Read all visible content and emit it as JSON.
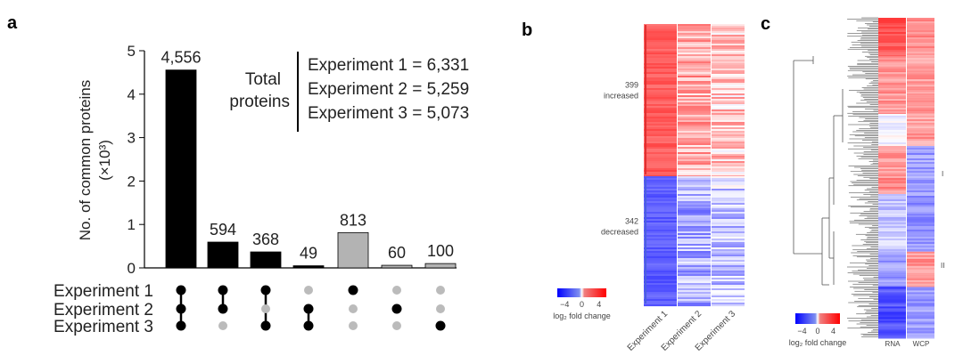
{
  "panels": {
    "a": "a",
    "b": "b",
    "c": "c"
  },
  "chart_data": [
    {
      "type": "bar",
      "panel": "a",
      "ylabel": "No. of common proteins",
      "ylabel_unit": "(×10³)",
      "ylim": [
        0,
        5
      ],
      "yticks": [
        "0",
        "1",
        "2",
        "3",
        "4",
        "5"
      ],
      "values": [
        4556,
        594,
        368,
        49,
        813,
        60,
        100
      ],
      "value_labels": [
        "4,556",
        "594",
        "368",
        "49",
        "813",
        "60",
        "100"
      ],
      "bar_colors": [
        "#000000",
        "#000000",
        "#000000",
        "#000000",
        "#b3b3b3",
        "#b3b3b3",
        "#b3b3b3"
      ],
      "sets": [
        "Experiment 1",
        "Experiment 2",
        "Experiment 3"
      ],
      "membership": [
        [
          1,
          1,
          1
        ],
        [
          1,
          1,
          0
        ],
        [
          1,
          0,
          1
        ],
        [
          0,
          1,
          1
        ],
        [
          1,
          0,
          0
        ],
        [
          0,
          1,
          0
        ],
        [
          0,
          0,
          1
        ]
      ],
      "annotation": {
        "label": [
          "Total",
          "proteins"
        ],
        "lines": [
          "Experiment 1 = 6,331",
          "Experiment 2 = 5,259",
          "Experiment 3 = 5,073"
        ]
      }
    },
    {
      "type": "heatmap",
      "panel": "b",
      "columns": [
        "Experiment 1",
        "Experiment 2",
        "Experiment 3"
      ],
      "groups": [
        {
          "count": "399",
          "label": "increased",
          "color": "#e03030",
          "mean_log2fc": [
            3.0,
            1.5,
            1.0
          ]
        },
        {
          "count": "342",
          "label": "decreased",
          "color": "#4a5fe0",
          "mean_log2fc": [
            -3.0,
            -1.5,
            -1.0
          ]
        }
      ],
      "colorbar": {
        "ticks": [
          "−4",
          "0",
          "4"
        ],
        "label": "log₂ fold change",
        "range": [
          -4,
          4
        ],
        "low": "#0000ff",
        "mid": "#ffffff",
        "high": "#ff0000"
      }
    },
    {
      "type": "heatmap",
      "panel": "c",
      "columns": [
        "RNA",
        "WCP"
      ],
      "clusters": [
        "I",
        "II"
      ],
      "dendrogram": true,
      "blocks": [
        {
          "rows": 0.12,
          "mean_log2fc": [
            3.2,
            2.0
          ]
        },
        {
          "rows": 0.18,
          "mean_log2fc": [
            2.0,
            1.8
          ]
        },
        {
          "rows": 0.1,
          "mean_log2fc": [
            -0.3,
            1.8
          ]
        },
        {
          "rows": 0.15,
          "mean_log2fc": [
            2.0,
            -1.8
          ]
        },
        {
          "rows": 0.18,
          "mean_log2fc": [
            -1.0,
            -2.0
          ]
        },
        {
          "rows": 0.11,
          "mean_log2fc": [
            -1.8,
            2.0
          ]
        },
        {
          "rows": 0.16,
          "mean_log2fc": [
            -3.2,
            -1.8
          ]
        }
      ],
      "colorbar": {
        "ticks": [
          "−4",
          "0",
          "4"
        ],
        "label": "log₂ fold change",
        "range": [
          -4,
          4
        ]
      }
    }
  ]
}
